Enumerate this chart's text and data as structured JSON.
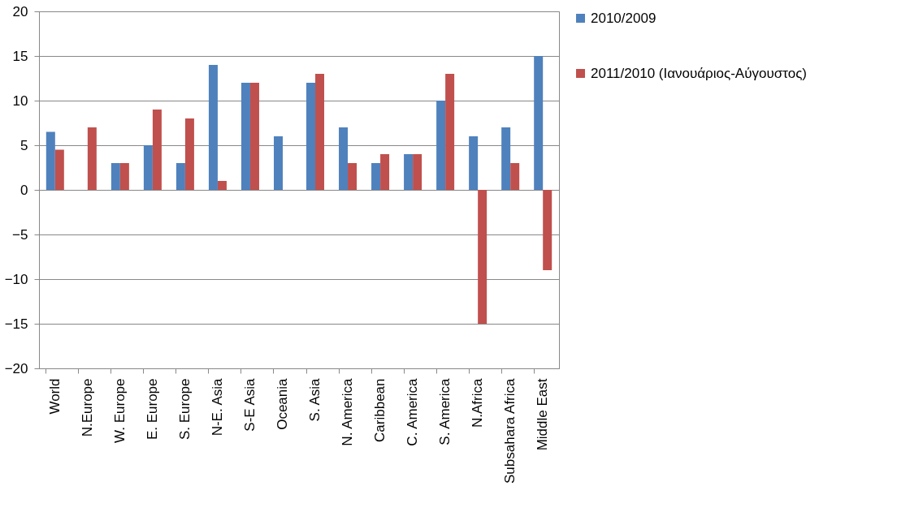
{
  "chart_data": {
    "type": "bar",
    "categories": [
      "World",
      "N.Europe",
      "W. Europe",
      "E. Europe",
      "S. Europe",
      "N-E. Asia",
      "S-E Asia",
      "Oceania",
      "S. Asia",
      "N. America",
      "Caribbean",
      "C. America",
      "S. America",
      "N.Africa",
      "Subsahara Africa",
      "Middle East"
    ],
    "series": [
      {
        "name": "2010/2009",
        "color": "#4f81bd",
        "values": [
          6.5,
          null,
          3,
          5,
          3,
          14,
          12,
          6,
          12,
          7,
          3,
          4,
          10,
          6,
          7,
          15
        ]
      },
      {
        "name": "2011/2010 (Ιανουάριος-Αύγουστος)",
        "color": "#c0504d",
        "values": [
          4.5,
          7,
          3,
          9,
          8,
          1,
          12,
          null,
          13,
          3,
          4,
          4,
          13,
          -15,
          3,
          -9
        ]
      }
    ],
    "ylim": [
      -20,
      20
    ],
    "yticks": [
      -20,
      -15,
      -10,
      -5,
      0,
      5,
      10,
      15,
      20
    ],
    "grid": "y",
    "legend": "right"
  }
}
